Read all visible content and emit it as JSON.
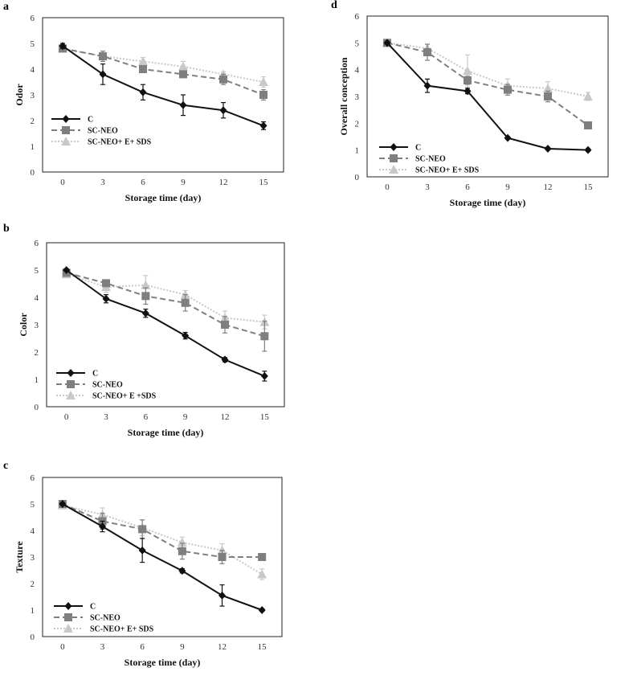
{
  "figure": {
    "panel_labels": [
      "a",
      "b",
      "c",
      "d"
    ]
  },
  "chart_data": [
    {
      "panel": "a",
      "type": "line",
      "title": "",
      "xlabel": "Storage time (day)",
      "ylabel": "Odor",
      "x": [
        0,
        3,
        6,
        9,
        12,
        15
      ],
      "ylim": [
        0,
        6
      ],
      "yticks": [
        0,
        1,
        2,
        3,
        4,
        5,
        6
      ],
      "legend_position": "bottom-left",
      "series": [
        {
          "name": "C",
          "values": [
            4.9,
            3.8,
            3.1,
            2.6,
            2.4,
            1.8
          ],
          "errors": [
            0.1,
            0.4,
            0.3,
            0.4,
            0.3,
            0.15
          ],
          "color": "#111111",
          "marker": "diamond",
          "dash": "solid"
        },
        {
          "name": "SC-NEO",
          "values": [
            4.8,
            4.5,
            4.0,
            3.8,
            3.6,
            3.0
          ],
          "errors": [
            0.1,
            0.2,
            0.1,
            0.1,
            0.2,
            0.2
          ],
          "color": "#7f7f7f",
          "marker": "square",
          "dash": "dashed"
        },
        {
          "name": "SC-NEO+ E+ SDS",
          "values": [
            4.8,
            4.5,
            4.3,
            4.1,
            3.8,
            3.5
          ],
          "errors": [
            0.1,
            0.2,
            0.15,
            0.2,
            0.1,
            0.2
          ],
          "color": "#c8c8c8",
          "marker": "triangle",
          "dash": "dotted"
        }
      ]
    },
    {
      "panel": "b",
      "type": "line",
      "title": "",
      "xlabel": "Storage time (day)",
      "ylabel": "Color",
      "x": [
        0,
        3,
        6,
        9,
        12,
        15
      ],
      "ylim": [
        0,
        6
      ],
      "yticks": [
        0,
        1,
        2,
        3,
        4,
        5,
        6
      ],
      "legend_position": "bottom-left",
      "series": [
        {
          "name": "C",
          "values": [
            5.0,
            3.95,
            3.42,
            2.6,
            1.72,
            1.12
          ],
          "errors": [
            0.05,
            0.15,
            0.15,
            0.12,
            0.08,
            0.18
          ],
          "color": "#111111",
          "marker": "diamond",
          "dash": "solid"
        },
        {
          "name": "SC-NEO",
          "values": [
            4.9,
            4.52,
            4.05,
            3.8,
            3.0,
            2.58
          ],
          "errors": [
            0.08,
            0.1,
            0.3,
            0.3,
            0.3,
            0.55
          ],
          "color": "#7f7f7f",
          "marker": "square",
          "dash": "dashed"
        },
        {
          "name": "SC-NEO+ E +SDS",
          "values": [
            4.85,
            4.38,
            4.45,
            4.1,
            3.25,
            3.1
          ],
          "errors": [
            0.08,
            0.2,
            0.35,
            0.15,
            0.25,
            0.25
          ],
          "color": "#c8c8c8",
          "marker": "triangle",
          "dash": "dotted"
        }
      ]
    },
    {
      "panel": "c",
      "type": "line",
      "title": "",
      "xlabel": "Storage time (day)",
      "ylabel": "Texture",
      "x": [
        0,
        3,
        6,
        9,
        12,
        15
      ],
      "ylim": [
        0,
        6
      ],
      "yticks": [
        0,
        1,
        2,
        3,
        4,
        5,
        6
      ],
      "legend_position": "bottom-left",
      "series": [
        {
          "name": "C",
          "values": [
            5.0,
            4.15,
            3.25,
            2.48,
            1.55,
            1.0
          ],
          "errors": [
            0.05,
            0.2,
            0.45,
            0.08,
            0.4,
            0.05
          ],
          "color": "#111111",
          "marker": "diamond",
          "dash": "solid"
        },
        {
          "name": "SC-NEO",
          "values": [
            5.0,
            4.35,
            4.05,
            3.22,
            3.0,
            3.0
          ],
          "errors": [
            0.05,
            0.3,
            0.35,
            0.3,
            0.25,
            0.05
          ],
          "color": "#7f7f7f",
          "marker": "square",
          "dash": "dashed"
        },
        {
          "name": "SC-NEO+ E+ SDS",
          "values": [
            4.95,
            4.6,
            4.1,
            3.55,
            3.25,
            2.35
          ],
          "errors": [
            0.05,
            0.25,
            0.3,
            0.2,
            0.25,
            0.2
          ],
          "color": "#c8c8c8",
          "marker": "triangle",
          "dash": "dotted"
        }
      ]
    },
    {
      "panel": "d",
      "type": "line",
      "title": "",
      "xlabel": "Storage time (day)",
      "ylabel": "Overall conception",
      "x": [
        0,
        3,
        6,
        9,
        12,
        15
      ],
      "ylim": [
        0,
        6
      ],
      "yticks": [
        0,
        1,
        2,
        3,
        4,
        5,
        6
      ],
      "legend_position": "bottom-left",
      "series": [
        {
          "name": "C",
          "values": [
            5.0,
            3.4,
            3.2,
            1.45,
            1.05,
            1.0
          ],
          "errors": [
            0.05,
            0.25,
            0.1,
            0.05,
            0.05,
            0.05
          ],
          "color": "#111111",
          "marker": "diamond",
          "dash": "solid"
        },
        {
          "name": "SC-NEO",
          "values": [
            5.0,
            4.65,
            3.6,
            3.25,
            3.0,
            1.92
          ],
          "errors": [
            0.05,
            0.3,
            0.15,
            0.2,
            0.2,
            0.05
          ],
          "color": "#7f7f7f",
          "marker": "square",
          "dash": "dashed"
        },
        {
          "name": "SC-NEO+ E+ SDS",
          "values": [
            5.0,
            4.8,
            3.95,
            3.4,
            3.3,
            3.0
          ],
          "errors": [
            0.05,
            0.15,
            0.6,
            0.25,
            0.25,
            0.15
          ],
          "color": "#c8c8c8",
          "marker": "triangle",
          "dash": "dotted"
        }
      ]
    }
  ]
}
